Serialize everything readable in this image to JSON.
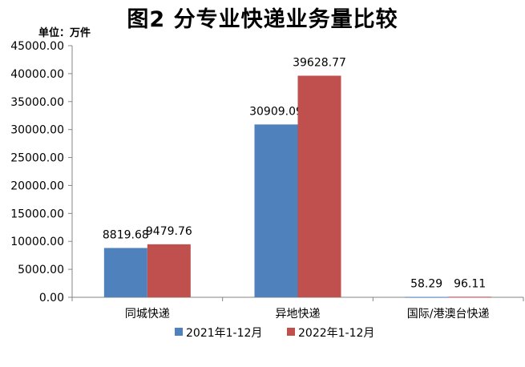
{
  "chart_data": {
    "type": "bar",
    "title": "图2  分专业快递业务量比较",
    "unit_label": "单位：万件",
    "categories": [
      "同城快递",
      "异地快递",
      "国际/港澳台快递"
    ],
    "series": [
      {
        "name": "2021年1-12月",
        "values": [
          8819.68,
          30909.09,
          58.29
        ],
        "labels": [
          "8819.68",
          "30909.09",
          "58.29"
        ],
        "color": "#4F81BD"
      },
      {
        "name": "2022年1-12月",
        "values": [
          9479.76,
          39628.77,
          96.11
        ],
        "labels": [
          "9479.76",
          "39628.77",
          "96.11"
        ],
        "color": "#C0504D"
      }
    ],
    "yticks": [
      "0.00",
      "5000.00",
      "10000.00",
      "15000.00",
      "20000.00",
      "25000.00",
      "30000.00",
      "35000.00",
      "40000.00",
      "45000.00"
    ],
    "ylim": [
      0,
      45000
    ],
    "grid": false,
    "legend_position": "bottom"
  }
}
